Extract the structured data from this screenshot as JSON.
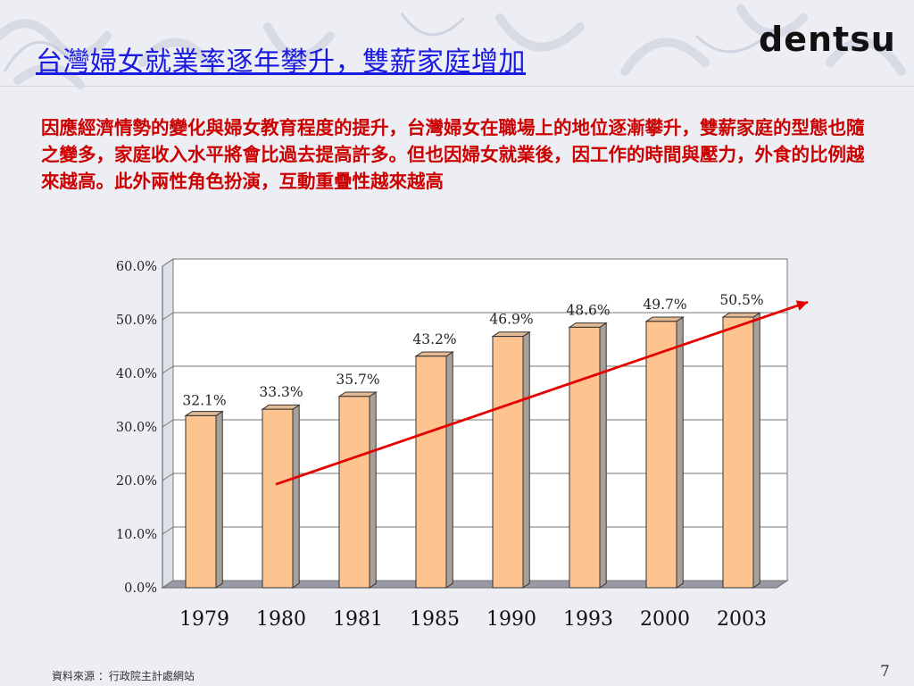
{
  "slide": {
    "title": "台灣婦女就業率逐年攀升，雙薪家庭增加",
    "logo_text": "dentsu",
    "body_text": "因應經濟情勢的變化與婦女教育程度的提升，台灣婦女在職場上的地位逐漸攀升，雙薪家庭的型態也隨之變多，家庭收入水平將會比過去提高許多。但也因婦女就業後，因工作的時間與壓力，外食的比例越來越高。此外兩性角色扮演，互動重疊性越來越高",
    "source_text": "資料來源 ：行政院主計處網站",
    "page_number": "7",
    "colors": {
      "title": "#1a1ae0",
      "body_text": "#cc0000",
      "bar_front": "#fdc48f",
      "trend_line": "#e60000"
    }
  },
  "chart_data": {
    "type": "bar",
    "categories": [
      "1979",
      "1980",
      "1981",
      "1985",
      "1990",
      "1993",
      "2000",
      "2003"
    ],
    "values": [
      32.1,
      33.3,
      35.7,
      43.2,
      46.9,
      48.6,
      49.7,
      50.5
    ],
    "value_labels": [
      "32.1%",
      "33.3%",
      "35.7%",
      "43.2%",
      "46.9%",
      "48.6%",
      "49.7%",
      "50.5%"
    ],
    "ylim": [
      0,
      60
    ],
    "yticks": [
      0,
      10,
      20,
      30,
      40,
      50,
      60
    ],
    "ytick_labels": [
      "0.0%",
      "10.0%",
      "20.0%",
      "30.0%",
      "40.0%",
      "50.0%",
      "60.0%"
    ],
    "grid": true,
    "style": "3d",
    "trend_arrow": {
      "color": "#e60000",
      "from_category": "1980",
      "from_value": 19.3,
      "to_category": "2003",
      "to_value": 53.3
    },
    "title": "",
    "xlabel": "",
    "ylabel": ""
  }
}
